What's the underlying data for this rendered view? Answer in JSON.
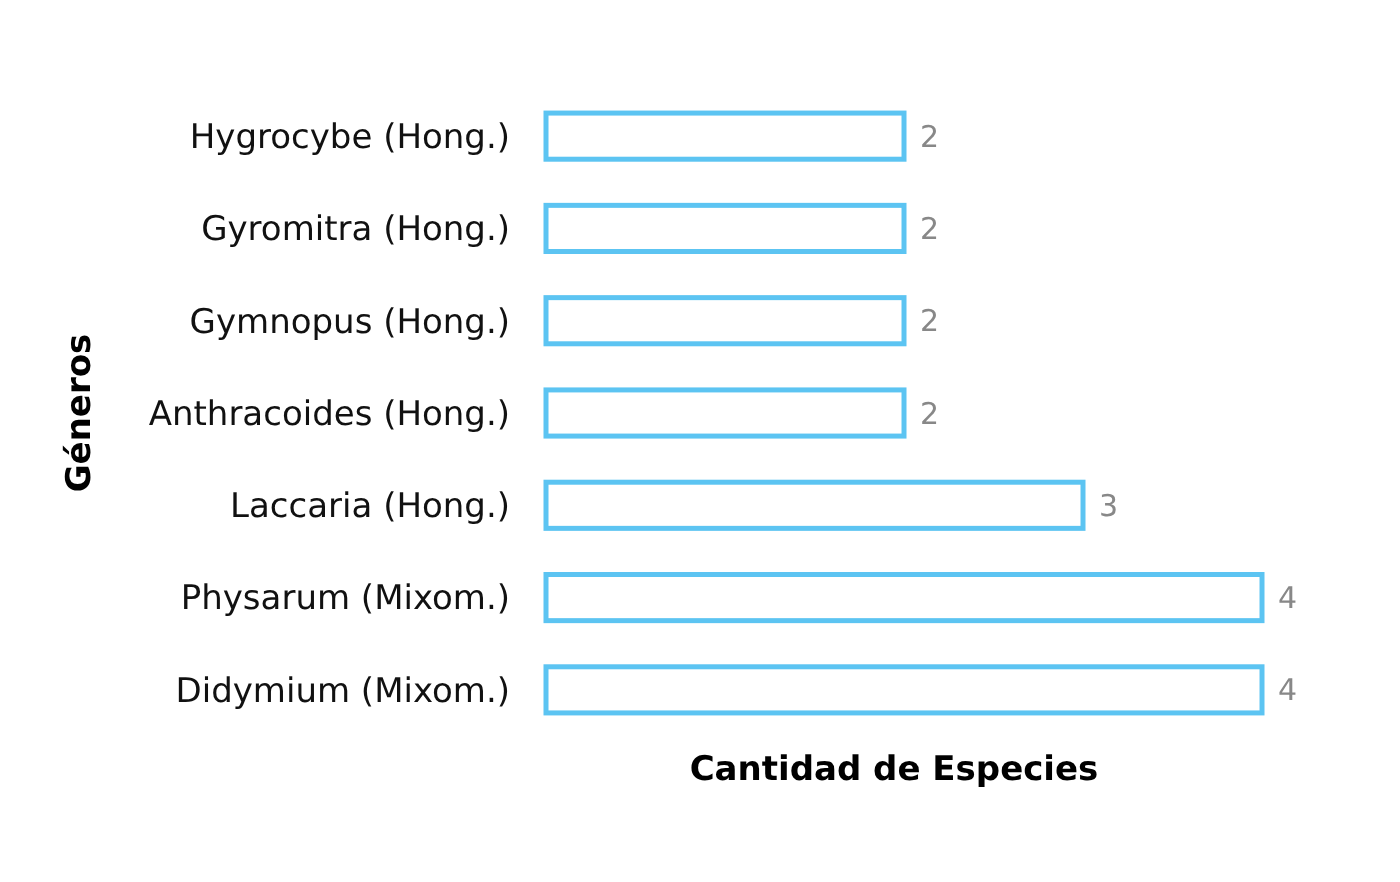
{
  "chart_data": {
    "type": "bar",
    "orientation": "horizontal",
    "xlabel": "Cantidad de Especies",
    "ylabel": "Géneros",
    "categories": [
      "Hygrocybe (Hong.)",
      "Gyromitra (Hong.)",
      "Gymnopus (Hong.)",
      "Anthracoides (Hong.)",
      "Laccaria (Hong.)",
      "Physarum (Mixom.)",
      "Didymium (Mixom.)"
    ],
    "values": [
      2,
      2,
      2,
      2,
      3,
      4,
      4
    ],
    "color": "#5cc4f2",
    "data_labels": true
  }
}
